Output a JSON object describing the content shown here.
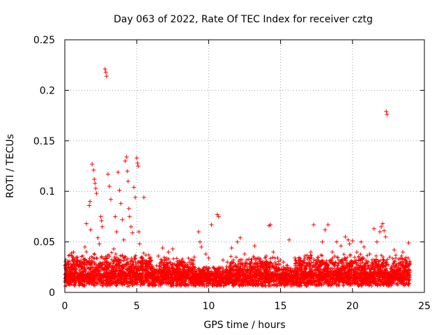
{
  "chart_data": {
    "type": "scatter",
    "title": "Day 063 of 2022, Rate Of TEC Index for receiver cztg",
    "xlabel": "GPS time / hours",
    "ylabel": "ROTI / TECUs",
    "xlim": [
      0,
      25
    ],
    "ylim": [
      0,
      0.25
    ],
    "x_ticks": [
      "0",
      "5",
      "10",
      "15",
      "20",
      "25"
    ],
    "y_ticks": [
      "0",
      "0.05",
      "0.1",
      "0.15",
      "0.2",
      "0.25"
    ],
    "grid": true,
    "legend": "none",
    "marker": "plus",
    "color": "#ff0000",
    "series": [
      {
        "points": [
          [
            0.1,
            0.012
          ],
          [
            0.2,
            0.028
          ],
          [
            0.3,
            0.018
          ],
          [
            0.5,
            0.024
          ],
          [
            0.6,
            0.04
          ],
          [
            0.8,
            0.02
          ],
          [
            1.0,
            0.03
          ],
          [
            1.2,
            0.025
          ],
          [
            1.4,
            0.045
          ],
          [
            1.5,
            0.068
          ],
          [
            1.7,
            0.086
          ],
          [
            1.75,
            0.09
          ],
          [
            1.8,
            0.062
          ],
          [
            1.9,
            0.127
          ],
          [
            2.0,
            0.121
          ],
          [
            2.05,
            0.112
          ],
          [
            2.1,
            0.108
          ],
          [
            2.15,
            0.103
          ],
          [
            2.2,
            0.098
          ],
          [
            2.3,
            0.054
          ],
          [
            2.4,
            0.048
          ],
          [
            2.5,
            0.075
          ],
          [
            2.55,
            0.071
          ],
          [
            2.6,
            0.065
          ],
          [
            2.8,
            0.221
          ],
          [
            2.85,
            0.218
          ],
          [
            2.9,
            0.214
          ],
          [
            3.0,
            0.117
          ],
          [
            3.1,
            0.105
          ],
          [
            3.2,
            0.092
          ],
          [
            3.4,
            0.043
          ],
          [
            3.5,
            0.075
          ],
          [
            3.6,
            0.06
          ],
          [
            3.7,
            0.119
          ],
          [
            3.8,
            0.101
          ],
          [
            3.9,
            0.088
          ],
          [
            4.0,
            0.072
          ],
          [
            4.1,
            0.052
          ],
          [
            4.2,
            0.13
          ],
          [
            4.3,
            0.134
          ],
          [
            4.35,
            0.12
          ],
          [
            4.4,
            0.11
          ],
          [
            4.45,
            0.083
          ],
          [
            4.5,
            0.075
          ],
          [
            4.6,
            0.065
          ],
          [
            4.7,
            0.059
          ],
          [
            4.8,
            0.104
          ],
          [
            4.9,
            0.094
          ],
          [
            5.0,
            0.133
          ],
          [
            5.05,
            0.128
          ],
          [
            5.1,
            0.125
          ],
          [
            5.15,
            0.06
          ],
          [
            5.2,
            0.048
          ],
          [
            5.3,
            0.034
          ],
          [
            5.5,
            0.094
          ],
          [
            6.0,
            0.032
          ],
          [
            6.5,
            0.036
          ],
          [
            6.8,
            0.044
          ],
          [
            7.2,
            0.04
          ],
          [
            7.5,
            0.043
          ],
          [
            8.0,
            0.03
          ],
          [
            8.5,
            0.028
          ],
          [
            9.0,
            0.035
          ],
          [
            9.3,
            0.06
          ],
          [
            9.4,
            0.05
          ],
          [
            9.5,
            0.045
          ],
          [
            9.8,
            0.038
          ],
          [
            10.0,
            0.034
          ],
          [
            10.2,
            0.067
          ],
          [
            10.6,
            0.077
          ],
          [
            10.7,
            0.075
          ],
          [
            11.0,
            0.032
          ],
          [
            11.3,
            0.03
          ],
          [
            11.6,
            0.044
          ],
          [
            12.0,
            0.05
          ],
          [
            12.2,
            0.054
          ],
          [
            12.5,
            0.038
          ],
          [
            12.8,
            0.033
          ],
          [
            13.2,
            0.046
          ],
          [
            13.5,
            0.034
          ],
          [
            13.8,
            0.03
          ],
          [
            14.0,
            0.036
          ],
          [
            14.2,
            0.066
          ],
          [
            14.3,
            0.067
          ],
          [
            14.5,
            0.04
          ],
          [
            14.8,
            0.034
          ],
          [
            15.2,
            0.03
          ],
          [
            15.6,
            0.052
          ],
          [
            16.0,
            0.034
          ],
          [
            16.3,
            0.032
          ],
          [
            16.7,
            0.036
          ],
          [
            17.1,
            0.04
          ],
          [
            17.3,
            0.067
          ],
          [
            17.6,
            0.035
          ],
          [
            17.9,
            0.05
          ],
          [
            18.1,
            0.062
          ],
          [
            18.3,
            0.067
          ],
          [
            18.6,
            0.04
          ],
          [
            18.9,
            0.05
          ],
          [
            19.2,
            0.046
          ],
          [
            19.5,
            0.055
          ],
          [
            19.7,
            0.052
          ],
          [
            19.8,
            0.048
          ],
          [
            20.0,
            0.051
          ],
          [
            20.3,
            0.04
          ],
          [
            20.6,
            0.05
          ],
          [
            20.8,
            0.045
          ],
          [
            21.2,
            0.038
          ],
          [
            21.5,
            0.063
          ],
          [
            21.7,
            0.05
          ],
          [
            21.9,
            0.06
          ],
          [
            22.0,
            0.065
          ],
          [
            22.1,
            0.068
          ],
          [
            22.2,
            0.061
          ],
          [
            22.3,
            0.055
          ],
          [
            22.35,
            0.179
          ],
          [
            22.4,
            0.176
          ],
          [
            22.6,
            0.035
          ],
          [
            22.9,
            0.042
          ],
          [
            23.2,
            0.028
          ],
          [
            23.5,
            0.04
          ],
          [
            23.7,
            0.032
          ],
          [
            23.9,
            0.049
          ]
        ]
      }
    ]
  }
}
